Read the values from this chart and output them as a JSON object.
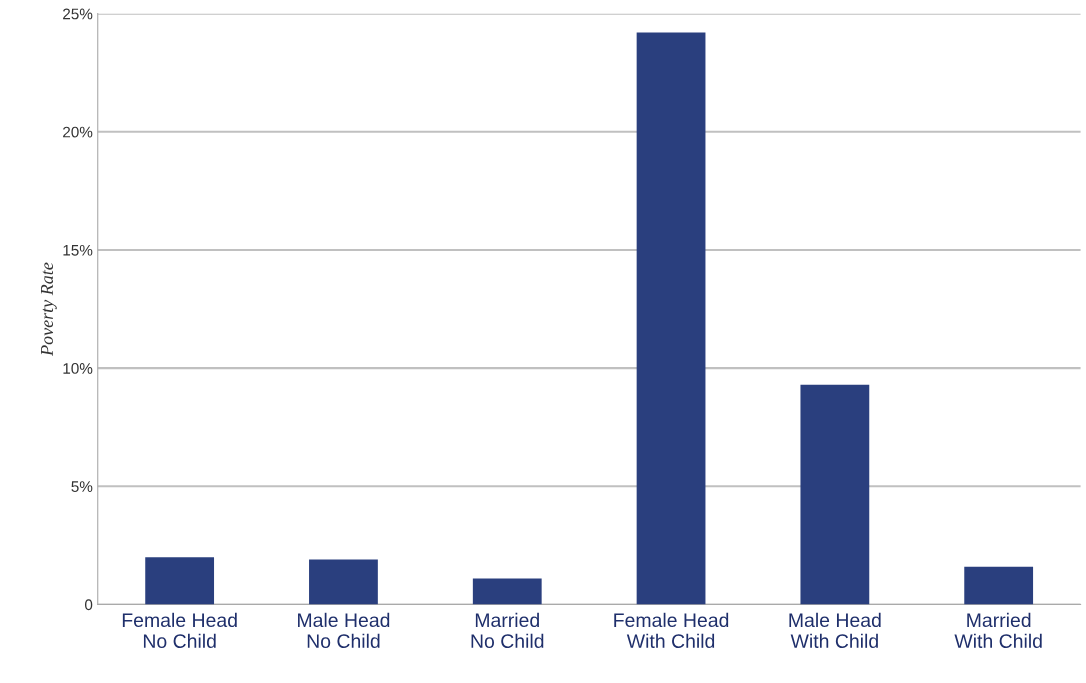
{
  "chart_data": {
    "type": "bar",
    "ylabel": "Poverty Rate",
    "categories": [
      "Female Head\nNo Child",
      "Male Head\nNo Child",
      "Married\nNo Child",
      "Female Head\nWith Child",
      "Male Head\nWith Child",
      "Married\nWith Child"
    ],
    "values": [
      2.0,
      1.9,
      1.1,
      24.2,
      9.3,
      1.6
    ],
    "color": "#2a3f7e",
    "ylim": [
      0,
      25
    ],
    "yticks": [
      {
        "value": 0,
        "label": "0"
      },
      {
        "value": 5,
        "label": "5%"
      },
      {
        "value": 10,
        "label": "10%"
      },
      {
        "value": 15,
        "label": "15%"
      },
      {
        "value": 20,
        "label": "20%"
      },
      {
        "value": 25,
        "label": "25%"
      }
    ],
    "grid": "y"
  }
}
